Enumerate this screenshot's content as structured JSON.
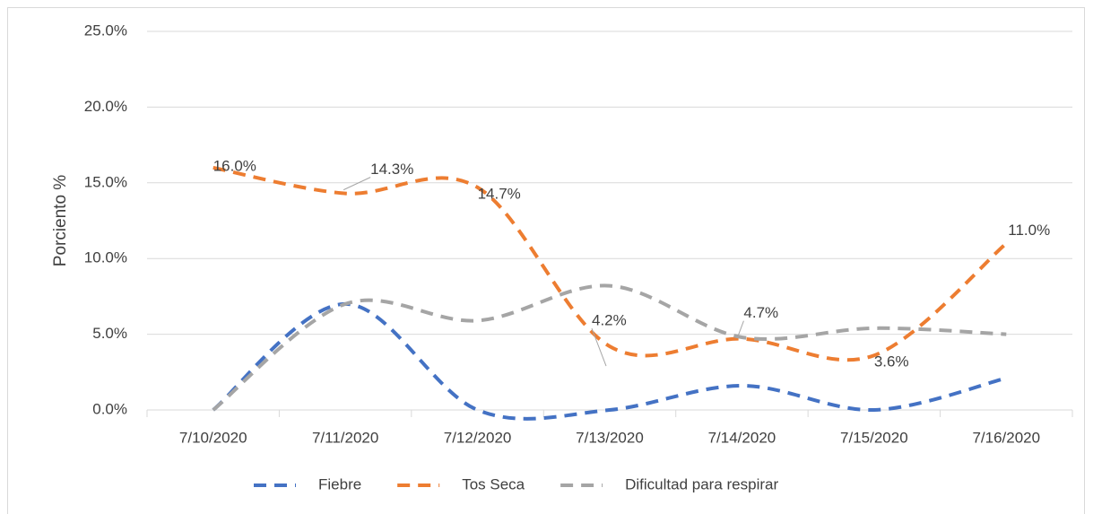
{
  "chart_data": {
    "type": "line",
    "y_label": "Porciento %",
    "categories": [
      "7/10/2020",
      "7/11/2020",
      "7/12/2020",
      "7/13/2020",
      "7/14/2020",
      "7/15/2020",
      "7/16/2020"
    ],
    "series": [
      {
        "name": "Fiebre",
        "color": "#4472c4",
        "values": [
          0,
          7.0,
          0,
          0,
          1.6,
          0,
          2.1
        ]
      },
      {
        "name": "Tos Seca",
        "color": "#ed7d31",
        "values": [
          16.0,
          14.3,
          14.7,
          4.2,
          4.7,
          3.6,
          11.0
        ],
        "value_labels": [
          "16.0%",
          "14.3%",
          "14.7%",
          "4.2%",
          "4.7%",
          "3.6%",
          "11.0%"
        ]
      },
      {
        "name": "Dificultad para respirar",
        "color": "#a5a5a5",
        "values": [
          0,
          7.0,
          5.9,
          8.2,
          4.8,
          5.4,
          5.0
        ]
      }
    ],
    "ylim": [
      0,
      25
    ],
    "yticks": [
      {
        "value": 0,
        "label": "0.0%"
      },
      {
        "value": 5,
        "label": "5.0%"
      },
      {
        "value": 10,
        "label": "10.0%"
      },
      {
        "value": 15,
        "label": "15.0%"
      },
      {
        "value": 20,
        "label": "20.0%"
      },
      {
        "value": 25,
        "label": "25.0%"
      }
    ],
    "grid": true,
    "legend": "bottom",
    "line_style": "dashed",
    "smooth": true
  }
}
